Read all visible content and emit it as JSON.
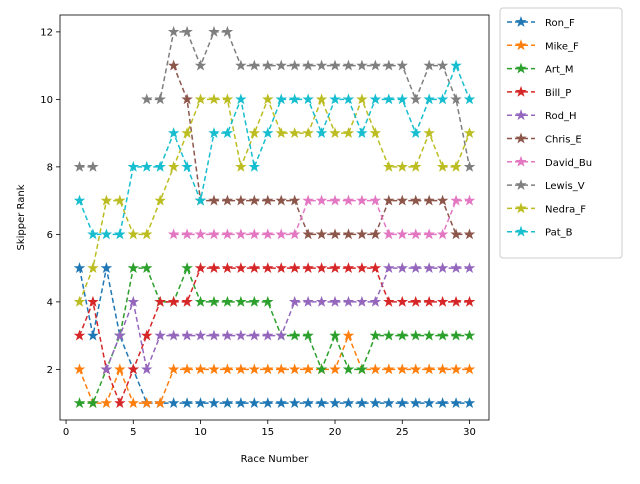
{
  "chart_data": {
    "type": "line",
    "xlabel": "Race Number",
    "ylabel": "Skipper Rank",
    "x": [
      1,
      2,
      3,
      4,
      5,
      6,
      7,
      8,
      9,
      10,
      11,
      12,
      13,
      14,
      15,
      16,
      17,
      18,
      19,
      20,
      21,
      22,
      23,
      24,
      25,
      26,
      27,
      28,
      29,
      30
    ],
    "xlim": [
      -0.45,
      31.45
    ],
    "xticks": [
      0,
      5,
      10,
      15,
      20,
      25,
      30
    ],
    "ylim": [
      0.5,
      12.5
    ],
    "yticks": [
      2,
      4,
      6,
      8,
      10,
      12
    ],
    "legend": "outside-right",
    "line_style": "dashed",
    "marker": "star",
    "series": [
      {
        "name": "Ron_F",
        "color": "#1f77b4",
        "values": [
          5,
          3,
          5,
          3,
          2,
          1,
          1,
          1,
          1,
          1,
          1,
          1,
          1,
          1,
          1,
          1,
          1,
          1,
          1,
          1,
          1,
          1,
          1,
          1,
          1,
          1,
          1,
          1,
          1,
          1
        ]
      },
      {
        "name": "Mike_F",
        "color": "#ff7f0e",
        "values": [
          2,
          1,
          1,
          2,
          1,
          1,
          1,
          2,
          2,
          2,
          2,
          2,
          2,
          2,
          2,
          2,
          2,
          2,
          2,
          2,
          3,
          2,
          2,
          2,
          2,
          2,
          2,
          2,
          2,
          2
        ]
      },
      {
        "name": "Art_M",
        "color": "#2ca02c",
        "values": [
          1,
          1,
          2,
          3,
          5,
          5,
          4,
          4,
          5,
          4,
          4,
          4,
          4,
          4,
          4,
          3,
          3,
          3,
          2,
          3,
          2,
          2,
          3,
          3,
          3,
          3,
          3,
          3,
          3,
          3
        ]
      },
      {
        "name": "Bill_P",
        "color": "#d62728",
        "values": [
          3,
          4,
          2,
          1,
          2,
          3,
          4,
          4,
          4,
          5,
          5,
          5,
          5,
          5,
          5,
          5,
          5,
          5,
          5,
          5,
          5,
          5,
          5,
          4,
          4,
          4,
          4,
          4,
          4,
          4
        ]
      },
      {
        "name": "Rod_H",
        "color": "#9467bd",
        "values": [
          null,
          null,
          2,
          3,
          4,
          2,
          3,
          3,
          3,
          3,
          3,
          3,
          3,
          3,
          3,
          3,
          4,
          4,
          4,
          4,
          4,
          4,
          4,
          5,
          5,
          5,
          5,
          5,
          5,
          5
        ]
      },
      {
        "name": "Chris_E",
        "color": "#8c564b",
        "values": [
          null,
          null,
          null,
          null,
          null,
          null,
          null,
          11,
          10,
          7,
          7,
          7,
          7,
          7,
          7,
          7,
          7,
          6,
          6,
          6,
          6,
          6,
          6,
          7,
          7,
          7,
          7,
          7,
          6,
          6
        ]
      },
      {
        "name": "David_Bu",
        "color": "#e377c2",
        "values": [
          null,
          null,
          null,
          null,
          null,
          null,
          null,
          6,
          6,
          6,
          6,
          6,
          6,
          6,
          6,
          6,
          6,
          7,
          7,
          7,
          7,
          7,
          7,
          6,
          6,
          6,
          6,
          6,
          7,
          7
        ]
      },
      {
        "name": "Lewis_V",
        "color": "#7f7f7f",
        "values": [
          8,
          8,
          null,
          null,
          null,
          10,
          10,
          12,
          12,
          11,
          12,
          12,
          11,
          11,
          11,
          11,
          11,
          11,
          11,
          11,
          11,
          11,
          11,
          11,
          11,
          10,
          11,
          11,
          10,
          8
        ]
      },
      {
        "name": "Nedra_F",
        "color": "#bcbd22",
        "values": [
          4,
          5,
          7,
          7,
          6,
          6,
          7,
          8,
          9,
          10,
          10,
          10,
          8,
          9,
          10,
          9,
          9,
          9,
          10,
          9,
          9,
          10,
          9,
          8,
          8,
          8,
          9,
          8,
          8,
          9
        ]
      },
      {
        "name": "Pat_B",
        "color": "#17becf",
        "values": [
          7,
          6,
          6,
          6,
          8,
          8,
          8,
          9,
          8,
          7,
          9,
          9,
          10,
          8,
          9,
          10,
          10,
          10,
          9,
          10,
          10,
          9,
          10,
          10,
          10,
          9,
          10,
          10,
          11,
          10
        ]
      }
    ]
  }
}
